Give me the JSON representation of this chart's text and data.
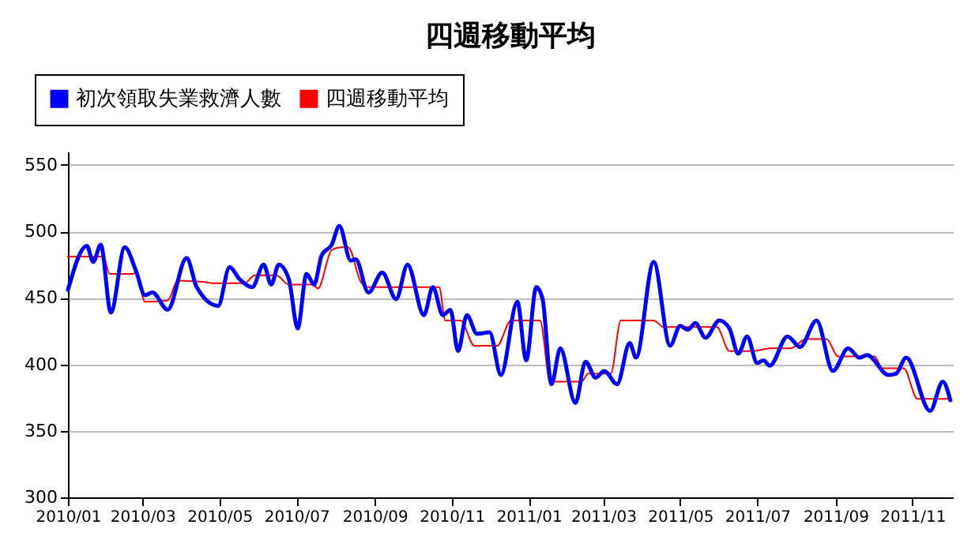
{
  "chart_data": {
    "type": "line",
    "title": "四週移動平均",
    "legend": "top left",
    "grid": "y",
    "xlim": [
      "2010-01-01",
      "2011-12-03"
    ],
    "xticks": [
      {
        "value": "2010-01",
        "label": "2010/01"
      },
      {
        "value": "2010-03",
        "label": "2010/03"
      },
      {
        "value": "2010-05",
        "label": "2010/05"
      },
      {
        "value": "2010-07",
        "label": "2010/07"
      },
      {
        "value": "2010-09",
        "label": "2010/09"
      },
      {
        "value": "2010-11",
        "label": "2010/11"
      },
      {
        "value": "2011-01",
        "label": "2011/01"
      },
      {
        "value": "2011-03",
        "label": "2011/03"
      },
      {
        "value": "2011-05",
        "label": "2011/05"
      },
      {
        "value": "2011-07",
        "label": "2011/07"
      },
      {
        "value": "2011-09",
        "label": "2011/09"
      },
      {
        "value": "2011-11",
        "label": "2011/11"
      }
    ],
    "ylim": [
      300,
      560
    ],
    "yticks": [
      300,
      350,
      400,
      450,
      500,
      550
    ],
    "series": [
      {
        "name": "初次領取失業救濟人數",
        "color": "#0000ff",
        "x": [
          "2010-01-01",
          "2010-01-16",
          "2010-01-21",
          "2010-01-27",
          "2010-02-04",
          "2010-02-15",
          "2010-02-24",
          "2010-03-03",
          "2010-03-09",
          "2010-03-21",
          "2010-04-05",
          "2010-04-13",
          "2010-04-30",
          "2010-05-09",
          "2010-05-17",
          "2010-05-27",
          "2010-06-05",
          "2010-06-11",
          "2010-06-17",
          "2010-06-25",
          "2010-07-02",
          "2010-07-09",
          "2010-07-15",
          "2010-07-21",
          "2010-07-29",
          "2010-08-04",
          "2010-08-13",
          "2010-08-17",
          "2010-08-27",
          "2010-09-07",
          "2010-09-18",
          "2010-09-27",
          "2010-10-10",
          "2010-10-17",
          "2010-10-25",
          "2010-10-31",
          "2010-11-06",
          "2010-11-13",
          "2010-11-21",
          "2010-12-01",
          "2010-12-10",
          "2010-12-23",
          "2010-12-30",
          "2011-01-07",
          "2011-01-12",
          "2011-01-19",
          "2011-01-26",
          "2011-02-07",
          "2011-02-15",
          "2011-02-23",
          "2011-03-02",
          "2011-03-12",
          "2011-03-22",
          "2011-03-27",
          "2011-04-10",
          "2011-04-23",
          "2011-05-01",
          "2011-05-07",
          "2011-05-13",
          "2011-05-21",
          "2011-06-01",
          "2011-06-09",
          "2011-06-16",
          "2011-06-23",
          "2011-07-01",
          "2011-07-06",
          "2011-07-11",
          "2011-07-25",
          "2011-08-04",
          "2011-08-17",
          "2011-08-30",
          "2011-09-11",
          "2011-09-20",
          "2011-09-26",
          "2011-10-13",
          "2011-10-19",
          "2011-10-27",
          "2011-11-15",
          "2011-11-25",
          "2011-12-01"
        ],
        "values": [
          456,
          489,
          477,
          490,
          439,
          488,
          470,
          452,
          454,
          441,
          480,
          458,
          444,
          473,
          464,
          458,
          475,
          460,
          475,
          464,
          427,
          468,
          460,
          482,
          490,
          504,
          478,
          479,
          454,
          469,
          449,
          475,
          437,
          458,
          437,
          441,
          410,
          437,
          423,
          424,
          392,
          447,
          403,
          458,
          449,
          385,
          412,
          371,
          402,
          390,
          395,
          385,
          416,
          405,
          477,
          414,
          429,
          426,
          431,
          420,
          433,
          427,
          408,
          421,
          401,
          403,
          399,
          421,
          413,
          433,
          395,
          412,
          405,
          407,
          392,
          393,
          405,
          365,
          387,
          373
        ]
      },
      {
        "name": "四週移動平均",
        "color": "#ff0000",
        "x": [
          "2010-01-01",
          "2010-01-29",
          "2010-02-03",
          "2010-02-22",
          "2010-02-24",
          "2010-03-03",
          "2010-03-21",
          "2010-03-29",
          "2010-04-18",
          "2010-04-26",
          "2010-05-21",
          "2010-05-29",
          "2010-06-15",
          "2010-06-25",
          "2010-07-14",
          "2010-07-18",
          "2010-07-29",
          "2010-08-06",
          "2010-08-11",
          "2010-08-21",
          "2010-08-27",
          "2010-10-22",
          "2010-10-27",
          "2010-11-08",
          "2010-11-19",
          "2010-12-07",
          "2010-12-18",
          "2011-01-10",
          "2011-01-18",
          "2011-02-12",
          "2011-02-17",
          "2011-03-07",
          "2011-03-15",
          "2011-04-10",
          "2011-04-18",
          "2011-05-30",
          "2011-06-09",
          "2011-06-28",
          "2011-07-11",
          "2011-07-27",
          "2011-08-09",
          "2011-08-25",
          "2011-09-03",
          "2011-10-02",
          "2011-10-08",
          "2011-10-25",
          "2011-11-05",
          "2011-12-01"
        ],
        "values": [
          481,
          481,
          468,
          468,
          470,
          447,
          448,
          463,
          462,
          461,
          461,
          467,
          467,
          460,
          460,
          457,
          486,
          488,
          488,
          462,
          458,
          458,
          433,
          433,
          414,
          414,
          433,
          433,
          387,
          387,
          393,
          393,
          433,
          433,
          428,
          428,
          410,
          410,
          412,
          412,
          419,
          419,
          406,
          406,
          397,
          397,
          374,
          374
        ]
      }
    ]
  }
}
